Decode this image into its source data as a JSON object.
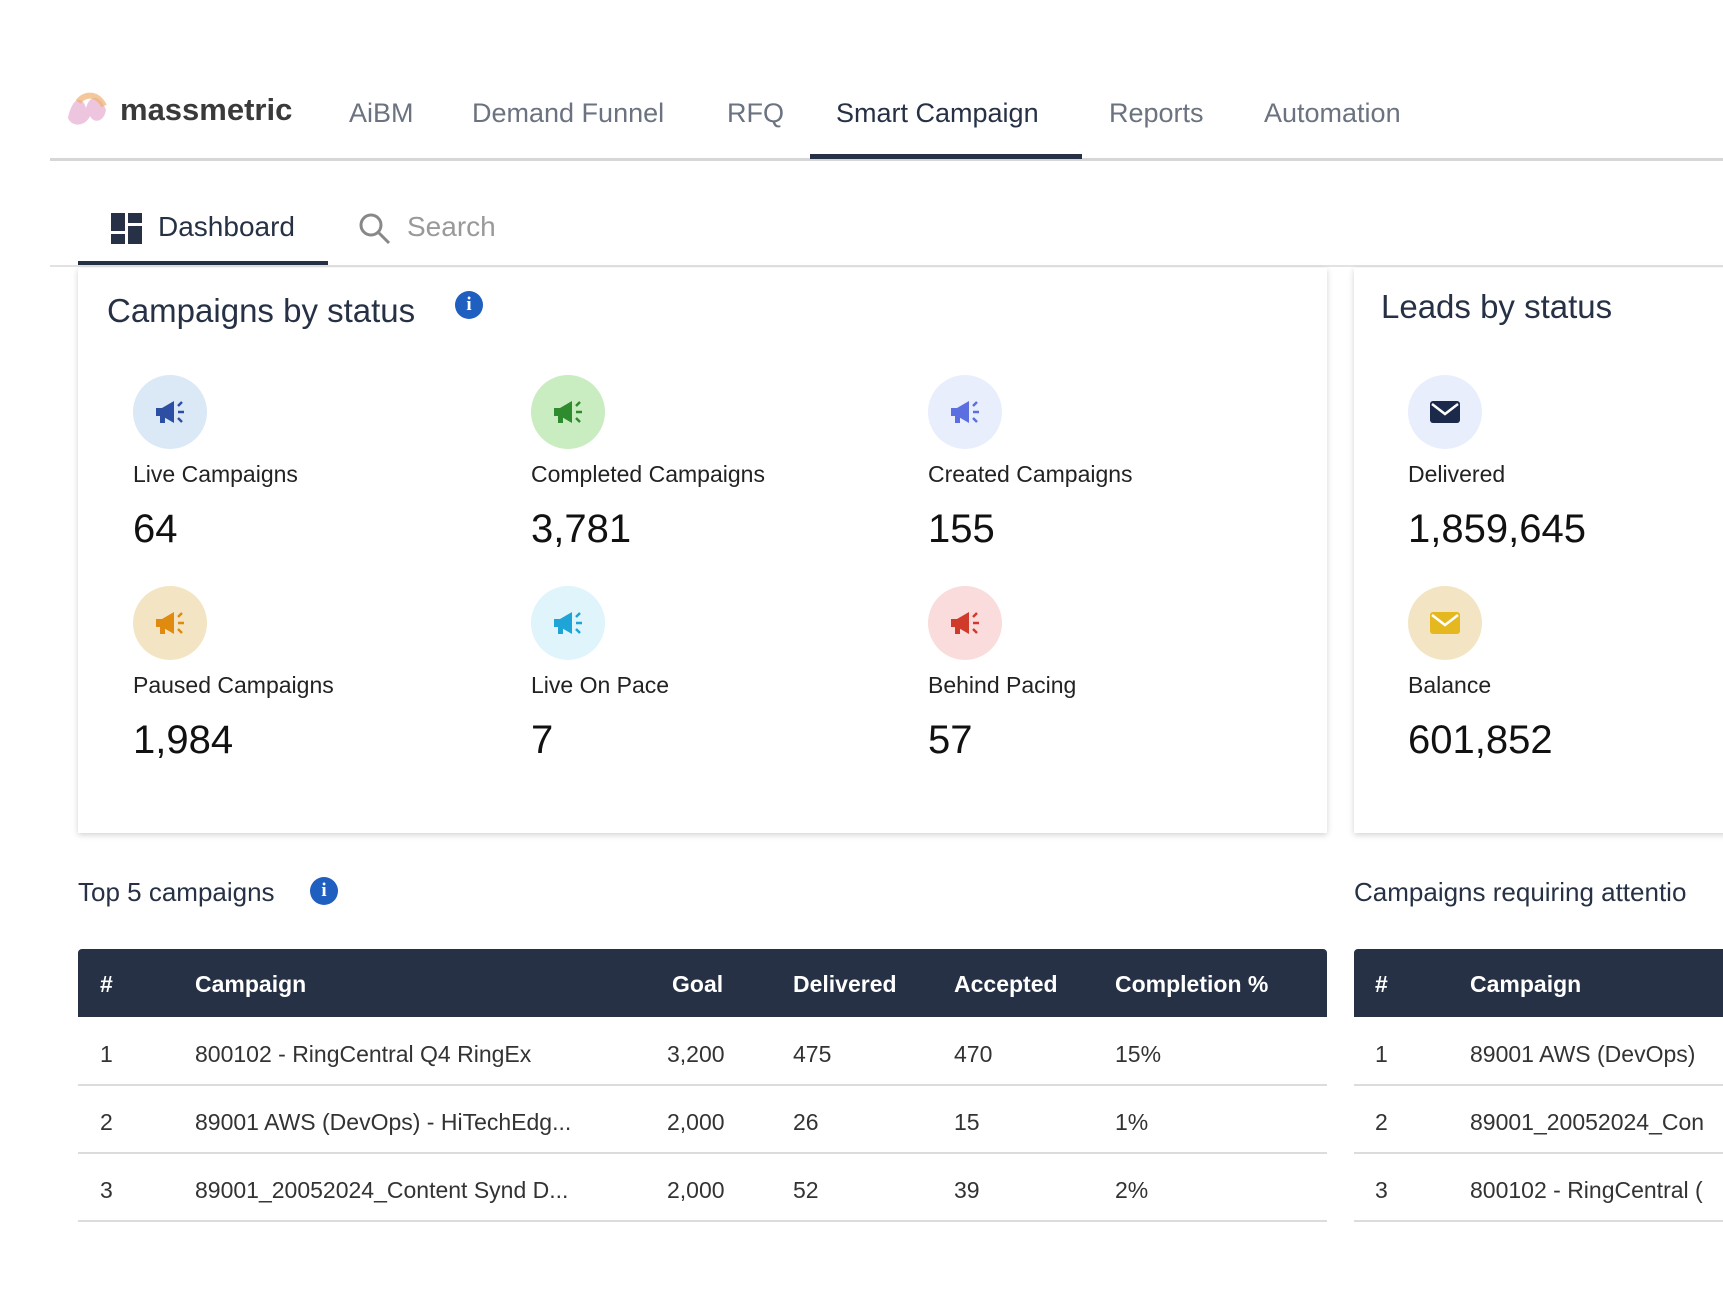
{
  "nav": {
    "logo": "massmetric",
    "items": [
      "AiBM",
      "Demand Funnel",
      "RFQ",
      "Smart Campaign",
      "Reports",
      "Automation"
    ]
  },
  "subnav": {
    "dashboard": "Dashboard",
    "search": "Search"
  },
  "campaigns_by_status": {
    "title": "Campaigns by status",
    "stats": [
      {
        "label": "Live Campaigns",
        "value": "64"
      },
      {
        "label": "Completed Campaigns",
        "value": "3,781"
      },
      {
        "label": "Created Campaigns",
        "value": "155"
      },
      {
        "label": "Paused Campaigns",
        "value": "1,984"
      },
      {
        "label": "Live On Pace",
        "value": "7"
      },
      {
        "label": "Behind Pacing",
        "value": "57"
      }
    ]
  },
  "leads_by_status": {
    "title": "Leads by status",
    "stats": [
      {
        "label": "Delivered",
        "value": "1,859,645"
      },
      {
        "label": "Balance",
        "value": "601,852"
      }
    ]
  },
  "top_campaigns": {
    "title": "Top 5 campaigns",
    "table": {
      "headers": [
        "#",
        "Campaign",
        "Goal",
        "Delivered",
        "Accepted",
        "Completion %"
      ],
      "rows": [
        [
          "1",
          "800102 - RingCentral Q4 RingEx",
          "3,200",
          "475",
          "470",
          "15%"
        ],
        [
          "2",
          "89001 AWS (DevOps) - HiTechEdg...",
          "2,000",
          "26",
          "15",
          "1%"
        ],
        [
          "3",
          "89001_20052024_Content Synd D...",
          "2,000",
          "52",
          "39",
          "2%"
        ]
      ]
    }
  },
  "attention": {
    "title": "Campaigns requiring attentio",
    "table": {
      "headers": [
        "#",
        "Campaign"
      ],
      "rows": [
        [
          "1",
          "89001 AWS (DevOps)"
        ],
        [
          "2",
          "89001_20052024_Con"
        ],
        [
          "3",
          "800102 - RingCentral ("
        ]
      ]
    }
  }
}
